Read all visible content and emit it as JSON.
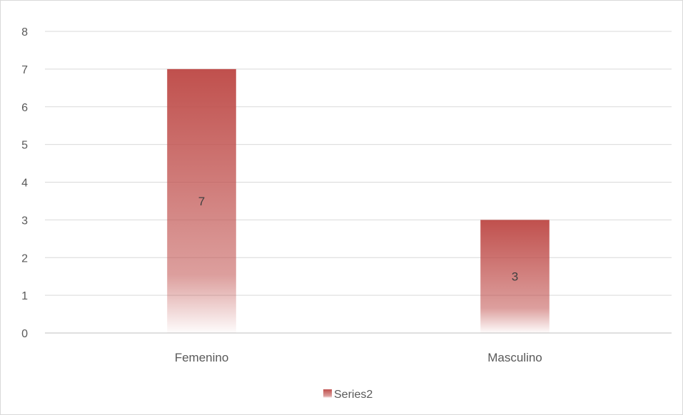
{
  "chart_data": {
    "type": "bar",
    "categories": [
      "Femenino",
      "Masculino"
    ],
    "series": [
      {
        "name": "Series2",
        "values": [
          7,
          3
        ],
        "color": "#c0504d"
      }
    ],
    "data_labels": [
      "7",
      "3"
    ],
    "y_ticks": [
      "0",
      "1",
      "2",
      "3",
      "4",
      "5",
      "6",
      "7",
      "8"
    ],
    "ylim": [
      0,
      8
    ],
    "grid": true,
    "legend_position": "bottom",
    "title": "",
    "xlabel": "",
    "ylabel": ""
  },
  "legend": {
    "label": "Series2"
  }
}
